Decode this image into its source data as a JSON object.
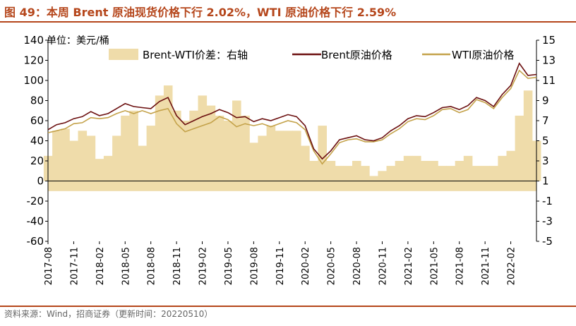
{
  "header": {
    "title": "图 49：本周 Brent 原油现货价格下行 2.02%，WTI 原油价格下行 2.59%"
  },
  "footer": {
    "source": "资料来源：Wind，招商证券（更新时间：20220510）"
  },
  "colors": {
    "accent": "#b5461b",
    "brent": "#6b0f0f",
    "wti": "#c4a24a",
    "spread": "#efdcaa"
  },
  "chart_data": {
    "type": "line",
    "unit_label": "单位：美元/桶",
    "legend": [
      "Brent-WTI价差：右轴",
      "Brent原油价格",
      "WTI原油价格"
    ],
    "legend_position": "top",
    "grid": false,
    "left_axis": {
      "ylim": [
        -60,
        140
      ],
      "ticks": [
        "140",
        "120",
        "100",
        "80",
        "60",
        "40",
        "20",
        "0",
        "-20",
        "-40",
        "-60"
      ]
    },
    "right_axis": {
      "ylim": [
        -5,
        15
      ],
      "ticks": [
        "15",
        "13",
        "11",
        "9",
        "7",
        "5",
        "3",
        "1",
        "-1",
        "-3",
        "-5"
      ]
    },
    "x_ticks": [
      "2017-08",
      "2017-11",
      "2018-02",
      "2018-05",
      "2018-08",
      "2018-11",
      "2019-02",
      "2019-05",
      "2019-08",
      "2019-11",
      "2020-02",
      "2020-05",
      "2020-08",
      "2020-11",
      "2021-02",
      "2021-05",
      "2021-08",
      "2021-11",
      "2022-02"
    ],
    "x": [
      "2017-08",
      "2017-09",
      "2017-10",
      "2017-11",
      "2017-12",
      "2018-01",
      "2018-02",
      "2018-03",
      "2018-04",
      "2018-05",
      "2018-06",
      "2018-07",
      "2018-08",
      "2018-09",
      "2018-10",
      "2018-11",
      "2018-12",
      "2019-01",
      "2019-02",
      "2019-03",
      "2019-04",
      "2019-05",
      "2019-06",
      "2019-07",
      "2019-08",
      "2019-09",
      "2019-10",
      "2019-11",
      "2019-12",
      "2020-01",
      "2020-02",
      "2020-03",
      "2020-04",
      "2020-05",
      "2020-06",
      "2020-07",
      "2020-08",
      "2020-09",
      "2020-10",
      "2020-11",
      "2020-12",
      "2021-01",
      "2021-02",
      "2021-03",
      "2021-04",
      "2021-05",
      "2021-06",
      "2021-07",
      "2021-08",
      "2021-09",
      "2021-10",
      "2021-11",
      "2021-12",
      "2022-01",
      "2022-02",
      "2022-03",
      "2022-04",
      "2022-05"
    ],
    "series": [
      {
        "name": "Brent原油价格",
        "values": [
          51,
          56,
          58,
          62,
          64,
          69,
          65,
          67,
          72,
          77,
          74,
          73,
          72,
          79,
          83,
          65,
          56,
          60,
          64,
          67,
          71,
          68,
          63,
          64,
          59,
          62,
          60,
          63,
          66,
          64,
          55,
          32,
          22,
          30,
          41,
          43,
          45,
          41,
          40,
          43,
          50,
          55,
          62,
          65,
          64,
          68,
          73,
          74,
          71,
          75,
          83,
          80,
          74,
          86,
          95,
          117,
          105,
          106
        ]
      },
      {
        "name": "WTI原油价格",
        "values": [
          48,
          50,
          52,
          57,
          58,
          63,
          62,
          63,
          67,
          70,
          67,
          70,
          67,
          70,
          72,
          57,
          49,
          52,
          55,
          58,
          64,
          61,
          54,
          57,
          55,
          57,
          54,
          57,
          60,
          58,
          51,
          30,
          17,
          27,
          38,
          41,
          42,
          39,
          39,
          41,
          47,
          52,
          59,
          62,
          61,
          65,
          71,
          72,
          68,
          71,
          81,
          78,
          72,
          83,
          92,
          110,
          102,
          103
        ]
      },
      {
        "name": "Brent-WTI价差：右轴",
        "values": [
          3.5,
          6.0,
          6.2,
          5.0,
          6.0,
          5.5,
          3.2,
          3.5,
          5.5,
          7.5,
          8.0,
          4.5,
          6.5,
          9.5,
          10.5,
          8.0,
          7.0,
          8.0,
          9.5,
          8.5,
          7.5,
          7.0,
          9.0,
          7.5,
          4.8,
          5.5,
          6.5,
          6.0,
          6.0,
          6.0,
          4.5,
          3.0,
          6.5,
          3.0,
          2.5,
          2.5,
          3.0,
          2.5,
          1.5,
          2.0,
          2.5,
          3.0,
          3.5,
          3.5,
          3.0,
          3.0,
          2.5,
          2.5,
          3.0,
          3.5,
          2.5,
          2.5,
          2.5,
          3.5,
          4.0,
          7.5,
          10.0,
          5.0
        ]
      }
    ]
  }
}
